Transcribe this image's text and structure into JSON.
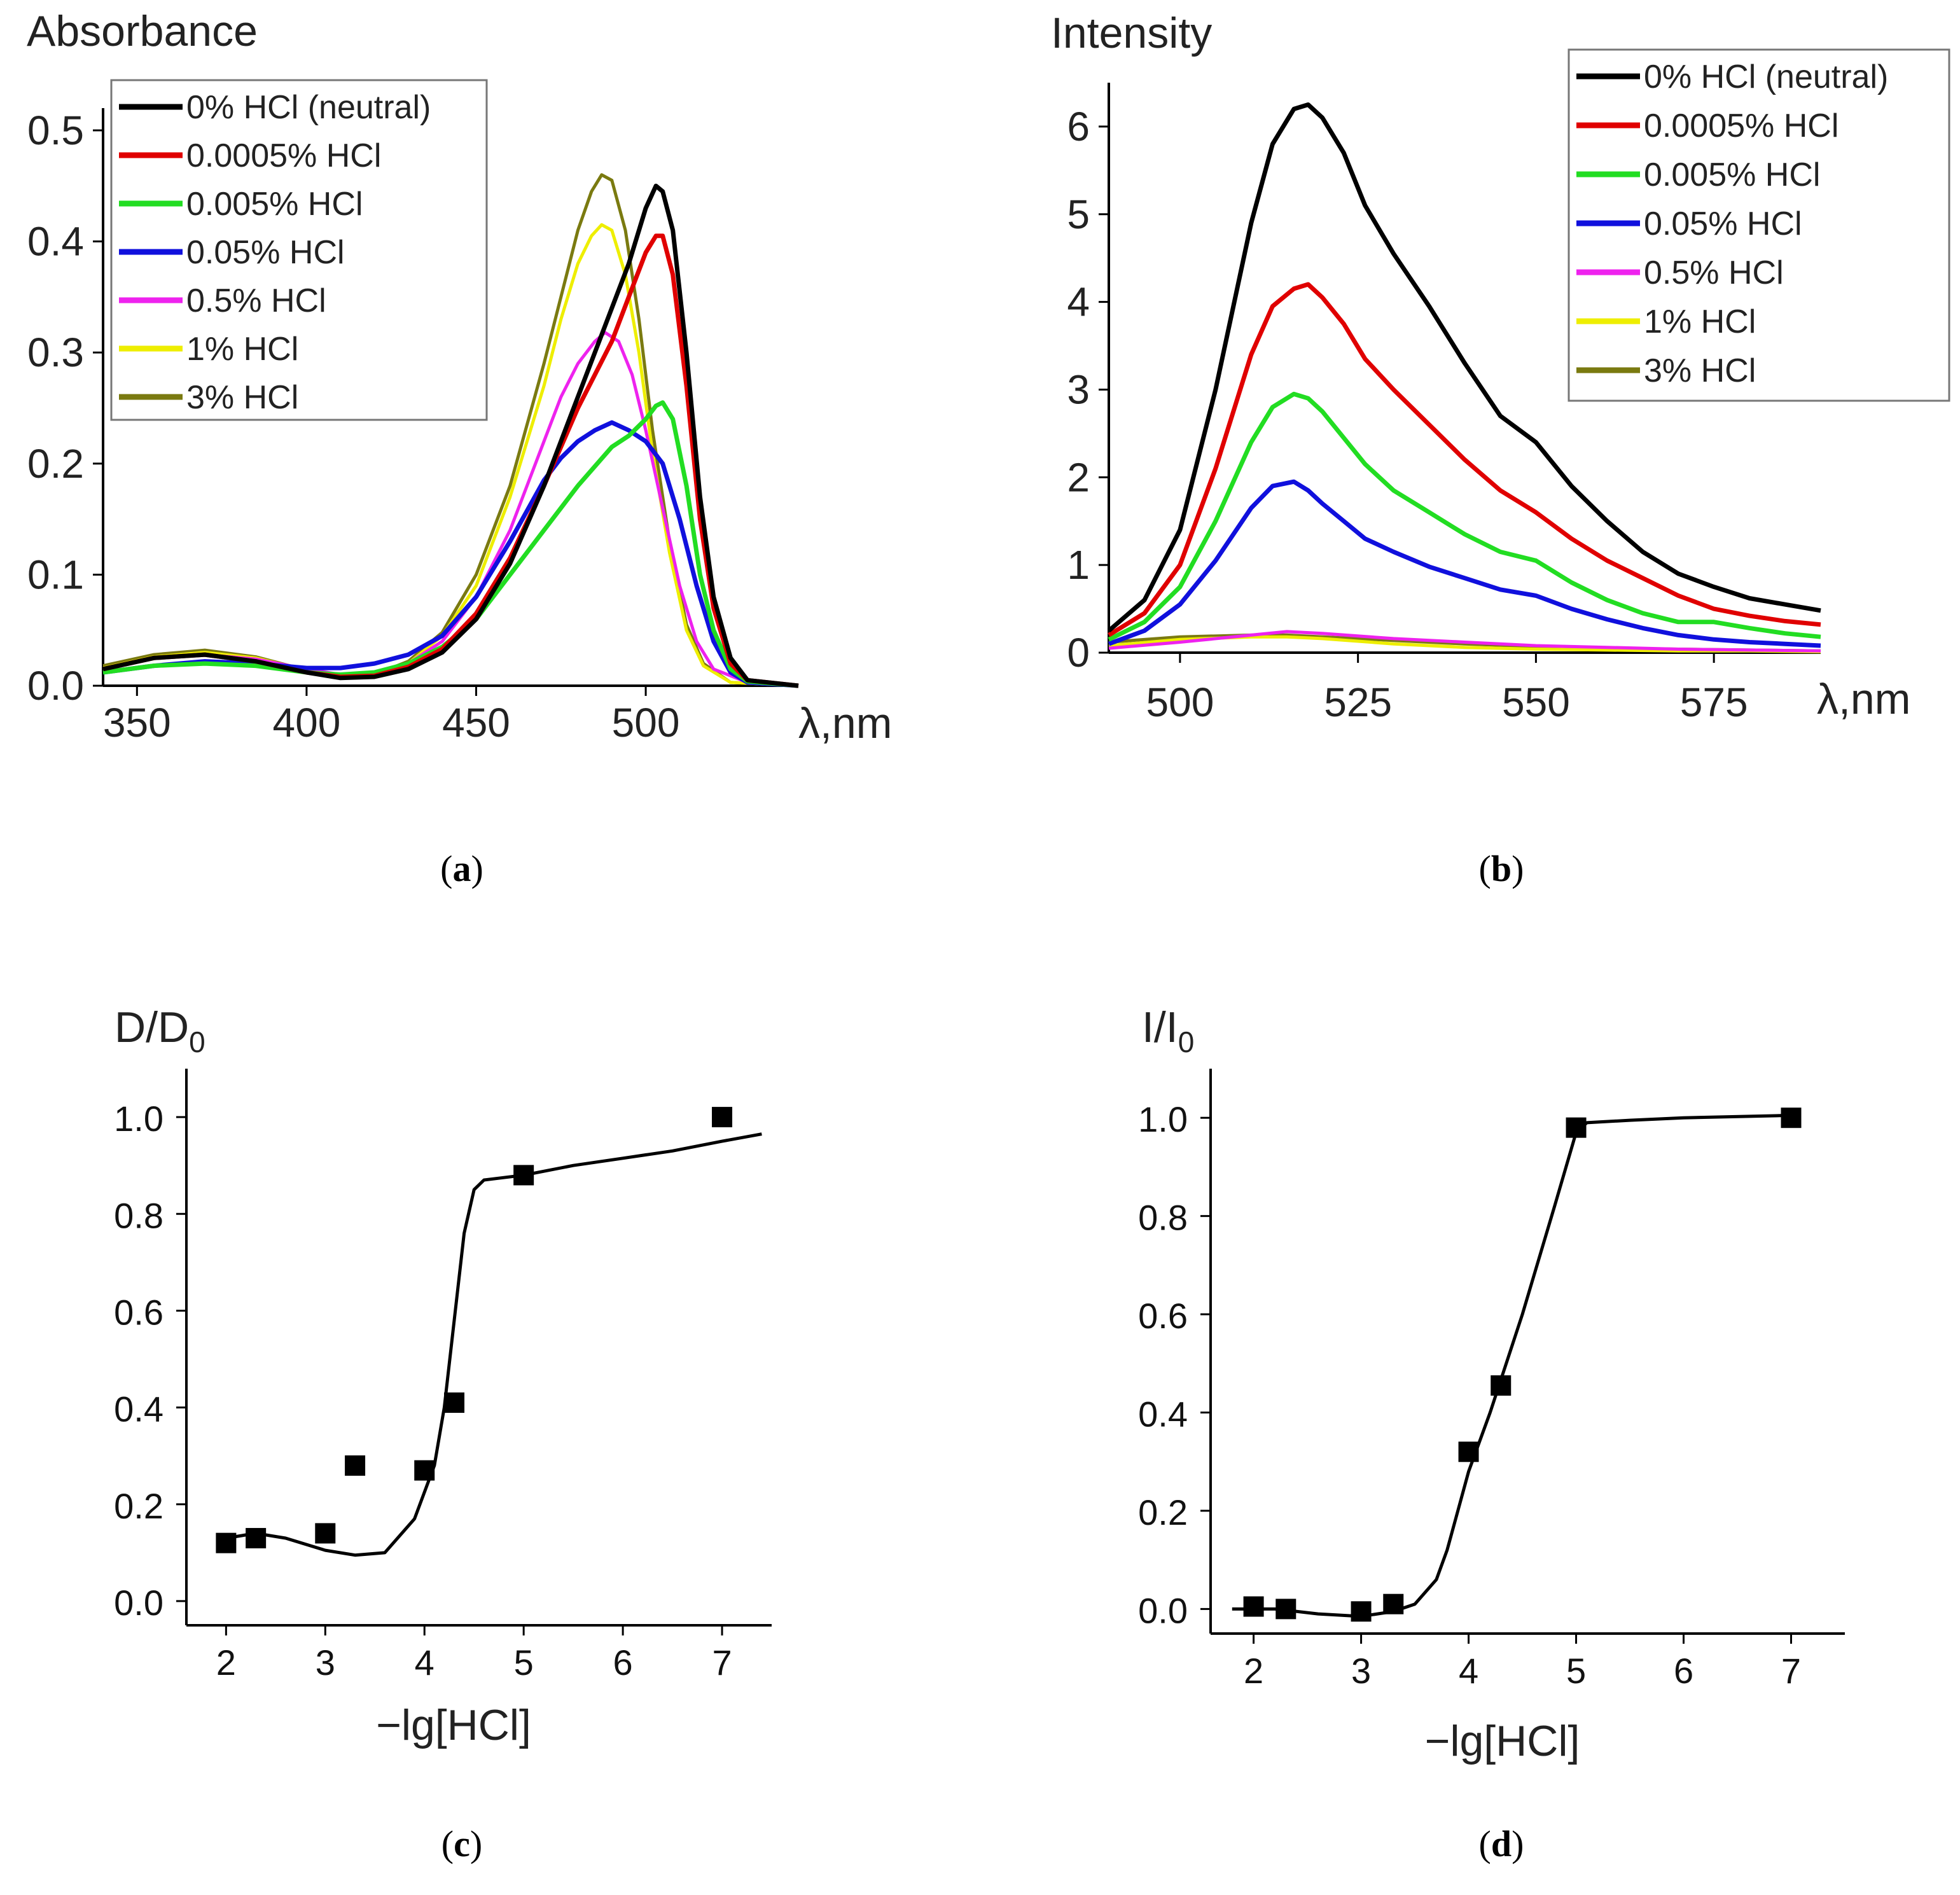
{
  "captions": {
    "a": "a",
    "b": "b",
    "c": "c",
    "d": "d"
  },
  "chart_data": [
    {
      "id": "a",
      "type": "line",
      "ylabel": "Absorbance",
      "xlabel": "λ,nm",
      "xlim": [
        340,
        545
      ],
      "ylim": [
        0,
        0.52
      ],
      "xticks": [
        350,
        400,
        450,
        500
      ],
      "xtick_labels": [
        "350",
        "400",
        "450",
        "500"
      ],
      "yticks": [
        0.0,
        0.1,
        0.2,
        0.3,
        0.4,
        0.5
      ],
      "ytick_labels": [
        "0.0",
        "0.1",
        "0.2",
        "0.3",
        "0.4",
        "0.5"
      ],
      "legend": "top-left",
      "series": [
        {
          "name": "0% HCl (neutral)",
          "color": "#000000",
          "x": [
            340,
            355,
            370,
            385,
            400,
            410,
            420,
            430,
            440,
            450,
            460,
            470,
            480,
            490,
            495,
            500,
            503,
            505,
            508,
            512,
            516,
            520,
            525,
            530,
            545
          ],
          "y": [
            0.015,
            0.025,
            0.028,
            0.022,
            0.012,
            0.007,
            0.008,
            0.015,
            0.03,
            0.06,
            0.11,
            0.18,
            0.26,
            0.34,
            0.38,
            0.43,
            0.45,
            0.445,
            0.41,
            0.3,
            0.17,
            0.08,
            0.025,
            0.005,
            0.0
          ]
        },
        {
          "name": "0.0005% HCl",
          "color": "#e00000",
          "x": [
            340,
            355,
            370,
            385,
            400,
            410,
            420,
            430,
            440,
            450,
            460,
            470,
            480,
            490,
            495,
            500,
            503,
            505,
            508,
            512,
            516,
            520,
            525,
            530,
            545
          ],
          "y": [
            0.015,
            0.025,
            0.028,
            0.022,
            0.012,
            0.008,
            0.009,
            0.017,
            0.033,
            0.065,
            0.115,
            0.18,
            0.25,
            0.31,
            0.35,
            0.39,
            0.405,
            0.405,
            0.37,
            0.27,
            0.15,
            0.07,
            0.02,
            0.005,
            0.0
          ]
        },
        {
          "name": "0.005% HCl",
          "color": "#22dd22",
          "x": [
            340,
            355,
            370,
            385,
            400,
            410,
            420,
            430,
            440,
            450,
            460,
            470,
            480,
            490,
            495,
            500,
            503,
            505,
            508,
            512,
            516,
            520,
            525,
            530,
            545
          ],
          "y": [
            0.012,
            0.018,
            0.02,
            0.018,
            0.012,
            0.01,
            0.012,
            0.02,
            0.035,
            0.06,
            0.1,
            0.14,
            0.18,
            0.215,
            0.225,
            0.24,
            0.252,
            0.255,
            0.24,
            0.18,
            0.1,
            0.05,
            0.015,
            0.004,
            0.0
          ]
        },
        {
          "name": "0.05% HCl",
          "color": "#1010dd",
          "x": [
            340,
            355,
            370,
            385,
            400,
            410,
            420,
            430,
            440,
            450,
            460,
            470,
            475,
            480,
            485,
            490,
            495,
            500,
            505,
            510,
            515,
            520,
            525,
            530,
            545
          ],
          "y": [
            0.012,
            0.018,
            0.022,
            0.02,
            0.016,
            0.016,
            0.02,
            0.028,
            0.045,
            0.08,
            0.13,
            0.185,
            0.205,
            0.22,
            0.23,
            0.237,
            0.23,
            0.22,
            0.2,
            0.15,
            0.09,
            0.04,
            0.012,
            0.003,
            0.0
          ]
        },
        {
          "name": "0.5% HCl",
          "color": "#ee22ee",
          "x": [
            340,
            355,
            370,
            385,
            400,
            410,
            420,
            430,
            440,
            450,
            460,
            470,
            475,
            480,
            485,
            488,
            492,
            496,
            500,
            505,
            510,
            515,
            520,
            530,
            545
          ],
          "y": [
            0.015,
            0.025,
            0.028,
            0.024,
            0.015,
            0.01,
            0.01,
            0.02,
            0.04,
            0.08,
            0.14,
            0.22,
            0.26,
            0.29,
            0.31,
            0.318,
            0.31,
            0.28,
            0.23,
            0.16,
            0.09,
            0.04,
            0.015,
            0.003,
            0.0
          ]
        },
        {
          "name": "1% HCl",
          "color": "#eeee00",
          "x": [
            340,
            355,
            370,
            385,
            400,
            410,
            420,
            430,
            440,
            450,
            460,
            470,
            475,
            480,
            484,
            487,
            490,
            494,
            498,
            502,
            507,
            512,
            517,
            525,
            545
          ],
          "y": [
            0.016,
            0.026,
            0.03,
            0.025,
            0.014,
            0.008,
            0.01,
            0.02,
            0.045,
            0.09,
            0.17,
            0.27,
            0.33,
            0.38,
            0.405,
            0.415,
            0.41,
            0.37,
            0.3,
            0.21,
            0.12,
            0.05,
            0.018,
            0.003,
            0.0
          ]
        },
        {
          "name": "3% HCl",
          "color": "#7a7a10",
          "x": [
            340,
            355,
            370,
            385,
            400,
            410,
            420,
            430,
            440,
            450,
            460,
            470,
            475,
            480,
            484,
            487,
            490,
            494,
            498,
            502,
            507,
            512,
            517,
            525,
            545
          ],
          "y": [
            0.018,
            0.028,
            0.032,
            0.026,
            0.014,
            0.008,
            0.01,
            0.022,
            0.048,
            0.1,
            0.18,
            0.29,
            0.35,
            0.41,
            0.445,
            0.46,
            0.455,
            0.41,
            0.33,
            0.23,
            0.13,
            0.055,
            0.02,
            0.003,
            0.0
          ]
        }
      ]
    },
    {
      "id": "b",
      "type": "line",
      "ylabel": "Intensity",
      "xlabel": "λ,nm",
      "xlim": [
        490,
        590
      ],
      "ylim": [
        0,
        6.5
      ],
      "xticks": [
        500,
        525,
        550,
        575
      ],
      "xtick_labels": [
        "500",
        "525",
        "550",
        "575"
      ],
      "yticks": [
        0,
        1,
        2,
        3,
        4,
        5,
        6
      ],
      "ytick_labels": [
        "0",
        "1",
        "2",
        "3",
        "4",
        "5",
        "6"
      ],
      "legend": "top-right",
      "series": [
        {
          "name": "0% HCl (neutral)",
          "color": "#000000",
          "x": [
            490,
            495,
            500,
            505,
            510,
            513,
            516,
            518,
            520,
            523,
            526,
            530,
            535,
            540,
            545,
            550,
            555,
            560,
            565,
            570,
            575,
            580,
            585,
            590
          ],
          "y": [
            0.25,
            0.6,
            1.4,
            3.0,
            4.9,
            5.8,
            6.2,
            6.25,
            6.1,
            5.7,
            5.1,
            4.55,
            3.95,
            3.3,
            2.7,
            2.4,
            1.9,
            1.5,
            1.15,
            0.9,
            0.75,
            0.62,
            0.55,
            0.48
          ]
        },
        {
          "name": "0.0005% HCl",
          "color": "#e00000",
          "x": [
            490,
            495,
            500,
            505,
            510,
            513,
            516,
            518,
            520,
            523,
            526,
            530,
            535,
            540,
            545,
            550,
            555,
            560,
            565,
            570,
            575,
            580,
            585,
            590
          ],
          "y": [
            0.2,
            0.45,
            1.0,
            2.1,
            3.4,
            3.95,
            4.15,
            4.2,
            4.05,
            3.75,
            3.35,
            3.0,
            2.6,
            2.2,
            1.85,
            1.6,
            1.3,
            1.05,
            0.85,
            0.65,
            0.5,
            0.42,
            0.36,
            0.32
          ]
        },
        {
          "name": "0.005% HCl",
          "color": "#22dd22",
          "x": [
            490,
            495,
            500,
            505,
            510,
            513,
            516,
            518,
            520,
            523,
            526,
            530,
            535,
            540,
            545,
            550,
            555,
            560,
            565,
            570,
            575,
            580,
            585,
            590
          ],
          "y": [
            0.15,
            0.35,
            0.75,
            1.5,
            2.4,
            2.8,
            2.95,
            2.9,
            2.75,
            2.45,
            2.15,
            1.85,
            1.6,
            1.35,
            1.15,
            1.05,
            0.8,
            0.6,
            0.45,
            0.35,
            0.35,
            0.28,
            0.22,
            0.18
          ]
        },
        {
          "name": "0.05% HCl",
          "color": "#1010dd",
          "x": [
            490,
            495,
            500,
            505,
            510,
            513,
            516,
            518,
            520,
            523,
            526,
            530,
            535,
            540,
            545,
            550,
            555,
            560,
            565,
            570,
            575,
            580,
            585,
            590
          ],
          "y": [
            0.1,
            0.25,
            0.55,
            1.05,
            1.65,
            1.9,
            1.95,
            1.85,
            1.7,
            1.5,
            1.3,
            1.15,
            0.98,
            0.85,
            0.72,
            0.65,
            0.5,
            0.38,
            0.28,
            0.2,
            0.15,
            0.12,
            0.1,
            0.08
          ]
        },
        {
          "name": "0.5% HCl",
          "color": "#ee22ee",
          "x": [
            490,
            500,
            510,
            515,
            520,
            530,
            540,
            550,
            560,
            570,
            580,
            590
          ],
          "y": [
            0.05,
            0.12,
            0.2,
            0.24,
            0.22,
            0.16,
            0.12,
            0.08,
            0.06,
            0.04,
            0.03,
            0.02
          ]
        },
        {
          "name": "1% HCl",
          "color": "#eeee00",
          "x": [
            490,
            500,
            510,
            515,
            520,
            530,
            540,
            550,
            560,
            570,
            580,
            590
          ],
          "y": [
            0.08,
            0.15,
            0.18,
            0.18,
            0.16,
            0.1,
            0.06,
            0.04,
            0.03,
            0.02,
            0.02,
            0.01
          ]
        },
        {
          "name": "3% HCl",
          "color": "#7a7a10",
          "x": [
            490,
            500,
            510,
            515,
            520,
            530,
            540,
            550,
            560,
            570,
            580,
            590
          ],
          "y": [
            0.12,
            0.18,
            0.2,
            0.2,
            0.18,
            0.14,
            0.1,
            0.07,
            0.05,
            0.04,
            0.03,
            0.02
          ]
        }
      ]
    },
    {
      "id": "c",
      "type": "scatter",
      "ylabel": "D/D",
      "ylabel_sub": "0",
      "xlabel": "−lg[HCl]",
      "xlim": [
        1.6,
        7.5
      ],
      "ylim": [
        -0.05,
        1.1
      ],
      "xticks": [
        2,
        3,
        4,
        5,
        6,
        7
      ],
      "xtick_labels": [
        "2",
        "3",
        "4",
        "5",
        "6",
        "7"
      ],
      "yticks": [
        0.0,
        0.2,
        0.4,
        0.6,
        0.8,
        1.0
      ],
      "ytick_labels": [
        "0.0",
        "0.2",
        "0.4",
        "0.6",
        "0.8",
        "1.0"
      ],
      "points": {
        "x": [
          2.0,
          2.3,
          3.0,
          3.3,
          4.0,
          4.3,
          5.0,
          7.0
        ],
        "y": [
          0.12,
          0.13,
          0.14,
          0.28,
          0.27,
          0.41,
          0.88,
          1.0
        ]
      },
      "fit": {
        "x": [
          2.0,
          2.3,
          2.6,
          3.0,
          3.3,
          3.6,
          3.9,
          4.1,
          4.2,
          4.3,
          4.4,
          4.5,
          4.6,
          4.8,
          5.0,
          5.5,
          6.0,
          6.5,
          7.0,
          7.4
        ],
        "y": [
          0.13,
          0.14,
          0.13,
          0.105,
          0.095,
          0.1,
          0.17,
          0.28,
          0.4,
          0.58,
          0.76,
          0.85,
          0.87,
          0.875,
          0.88,
          0.9,
          0.915,
          0.93,
          0.95,
          0.965
        ]
      }
    },
    {
      "id": "d",
      "type": "scatter",
      "ylabel": "I/I",
      "ylabel_sub": "0",
      "xlabel": "−lg[HCl]",
      "xlim": [
        1.6,
        7.5
      ],
      "ylim": [
        -0.05,
        1.1
      ],
      "xticks": [
        2,
        3,
        4,
        5,
        6,
        7
      ],
      "xtick_labels": [
        "2",
        "3",
        "4",
        "5",
        "6",
        "7"
      ],
      "yticks": [
        0.0,
        0.2,
        0.4,
        0.6,
        0.8,
        1.0
      ],
      "ytick_labels": [
        "0.0",
        "0.2",
        "0.4",
        "0.6",
        "0.8",
        "1.0"
      ],
      "points": {
        "x": [
          2.0,
          2.3,
          3.0,
          3.3,
          4.0,
          4.3,
          5.0,
          7.0
        ],
        "y": [
          0.005,
          0.0,
          -0.005,
          0.01,
          0.32,
          0.455,
          0.98,
          1.0
        ]
      },
      "fit": {
        "x": [
          1.8,
          2.2,
          2.6,
          3.0,
          3.3,
          3.5,
          3.7,
          3.8,
          3.9,
          4.0,
          4.2,
          4.5,
          4.8,
          5.0,
          5.1,
          5.5,
          6.0,
          7.0
        ],
        "y": [
          0.0,
          0.0,
          -0.01,
          -0.015,
          -0.005,
          0.01,
          0.06,
          0.12,
          0.2,
          0.28,
          0.4,
          0.6,
          0.82,
          0.97,
          0.99,
          0.995,
          1.0,
          1.005
        ]
      }
    }
  ]
}
